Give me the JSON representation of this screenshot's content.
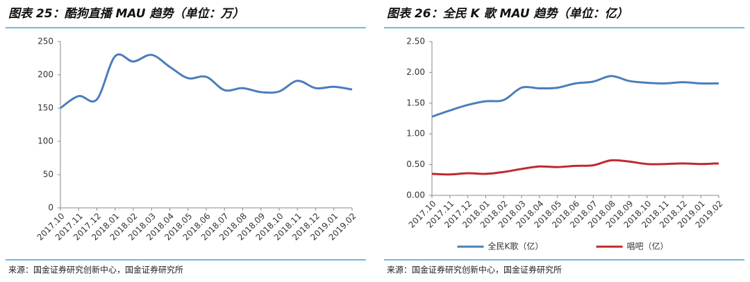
{
  "chart_data": [
    {
      "type": "line",
      "title": "图表 25：酷狗直播 MAU 趋势（单位：万）",
      "categories": [
        "2017.10",
        "2017.11",
        "2017.12",
        "2018.01",
        "2018.02",
        "2018.03",
        "2018.04",
        "2018.05",
        "2018.06",
        "2018.07",
        "2018.08",
        "2018.09",
        "2018.10",
        "2018.11",
        "2018.12",
        "2019.01",
        "2019.02"
      ],
      "values": [
        150,
        168,
        163,
        228,
        220,
        230,
        212,
        195,
        197,
        177,
        180,
        174,
        175,
        191,
        180,
        182,
        178
      ],
      "color": "#4a7ebb",
      "ylim": [
        0,
        250
      ],
      "yticks": [
        0,
        50,
        100,
        150,
        200,
        250
      ],
      "source": "来源：国金证券研究创新中心，国金证券研究所"
    },
    {
      "type": "line",
      "title": "图表 26：全民 K 歌 MAU 趋势（单位：亿）",
      "categories": [
        "2017.10",
        "2017.11",
        "2017.12",
        "2018.01",
        "2018.02",
        "2018.03",
        "2018.04",
        "2018.05",
        "2018.06",
        "2018.07",
        "2018.08",
        "2018.09",
        "2018.10",
        "2018.11",
        "2018.12",
        "2019.01",
        "2019.02"
      ],
      "series": [
        {
          "name": "全民K歌（亿）",
          "color": "#4a7ebb",
          "values": [
            1.28,
            1.38,
            1.47,
            1.53,
            1.55,
            1.75,
            1.74,
            1.75,
            1.82,
            1.85,
            1.94,
            1.86,
            1.83,
            1.82,
            1.84,
            1.82,
            1.82
          ]
        },
        {
          "name": "唱吧（亿）",
          "color": "#c0282e",
          "values": [
            0.35,
            0.34,
            0.36,
            0.35,
            0.38,
            0.43,
            0.47,
            0.46,
            0.48,
            0.49,
            0.57,
            0.55,
            0.51,
            0.51,
            0.52,
            0.51,
            0.52
          ]
        }
      ],
      "ylim": [
        0,
        2.5
      ],
      "yticks": [
        {
          "value": 0,
          "label": "0.00"
        },
        {
          "value": 0.5,
          "label": "0.50"
        },
        {
          "value": 1,
          "label": "1.00"
        },
        {
          "value": 1.5,
          "label": "1.50"
        },
        {
          "value": 2,
          "label": "2.00"
        },
        {
          "value": 2.5,
          "label": "2.50"
        }
      ],
      "legend": "bottom",
      "source": "来源：国金证券研究创新中心，国金证券研究所"
    }
  ]
}
